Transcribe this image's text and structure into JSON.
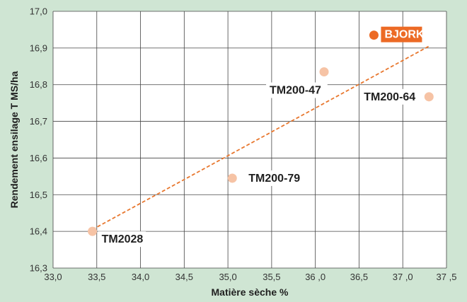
{
  "colors": {
    "background": "#cfe5d3",
    "plot_background": "#ffffff",
    "grid": "#444444",
    "point": "#f6c3a5",
    "highlight_point": "#ec6a25",
    "highlight_label_bg": "#ec6a25",
    "trendline": "#e8772e",
    "label_bg": "#ffffff"
  },
  "chart_data": {
    "type": "scatter",
    "xlabel": "Matière sèche %",
    "ylabel": "Rendement ensilage T MS/ha",
    "xlim": [
      33.0,
      37.5
    ],
    "ylim": [
      16.3,
      17.0
    ],
    "x_ticks": [
      "33,0",
      "33,5",
      "34,0",
      "34,5",
      "35,0",
      "35,5",
      "36 ,0",
      "36,5",
      "37 ,0",
      "37 ,5"
    ],
    "y_ticks": [
      "16,3",
      "16,4",
      "16,5",
      "16,6",
      "16,7",
      "16,8",
      "16,9",
      "17,0"
    ],
    "grid": true,
    "points": [
      {
        "label": "BJORK",
        "x": 36.67,
        "y": 16.935,
        "highlight": true
      },
      {
        "label": "TM200-47",
        "x": 36.1,
        "y": 16.835,
        "highlight": false
      },
      {
        "label": "TM200-64",
        "x": 37.3,
        "y": 16.767,
        "highlight": false
      },
      {
        "label": "TM200-79",
        "x": 35.05,
        "y": 16.545,
        "highlight": false
      },
      {
        "label": "TM2028",
        "x": 33.45,
        "y": 16.4,
        "highlight": false
      }
    ],
    "trendline": {
      "style": "dashed",
      "from": [
        33.45,
        16.405
      ],
      "to": [
        37.3,
        16.905
      ]
    }
  }
}
